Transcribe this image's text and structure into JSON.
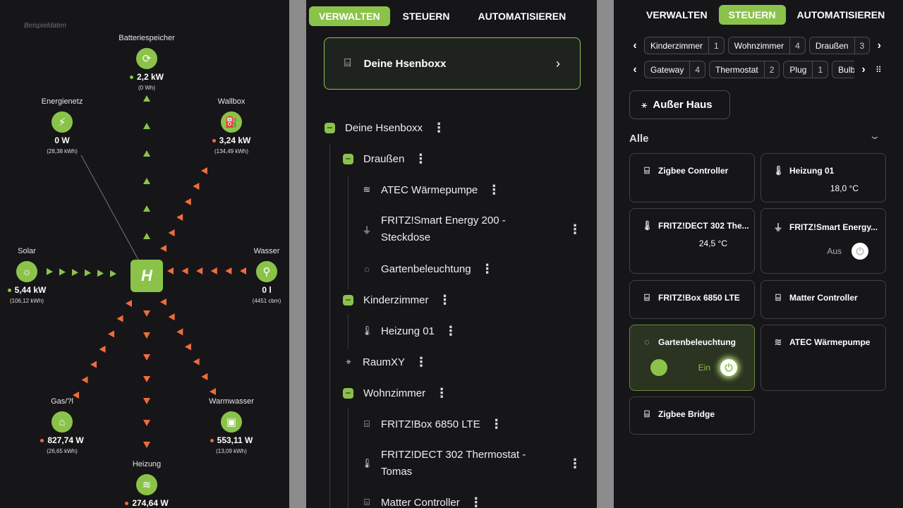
{
  "energy": {
    "demo_label": "Beispieldaten",
    "nodes": [
      {
        "id": "battery",
        "label": "Batteriespeicher",
        "icon": "battery-cycle-icon",
        "value": "2,2 kW",
        "total": "(0 Wh)",
        "dot": "#8bc34a",
        "flow": "out"
      },
      {
        "id": "grid",
        "label": "Energienetz",
        "icon": "power-grid-icon",
        "value": "0 W",
        "total": "(28,38 kWh)",
        "dot": null,
        "flow": "none"
      },
      {
        "id": "wallbox",
        "label": "Wallbox",
        "icon": "ev-charger-icon",
        "value": "3,24 kW",
        "total": "(134,49 kWh)",
        "dot": "#f26b3a",
        "flow": "in"
      },
      {
        "id": "solar",
        "label": "Solar",
        "icon": "solar-panel-icon",
        "value": "5,44 kW",
        "total": "(106,12 kWh)",
        "dot": "#8bc34a",
        "flow": "out"
      },
      {
        "id": "water",
        "label": "Wasser",
        "icon": "water-tap-icon",
        "value": "0 l",
        "total": "(4451 cbm)",
        "dot": null,
        "flow": "in"
      },
      {
        "id": "gas",
        "label": "Gas/?l",
        "icon": "house-icon",
        "value": "827,74 W",
        "total": "(26,65 kWh)",
        "dot": "#f26b3a",
        "flow": "in"
      },
      {
        "id": "hotwater",
        "label": "Warmwasser",
        "icon": "boiler-icon",
        "value": "553,11 W",
        "total": "(13,09 kWh)",
        "dot": "#f26b3a",
        "flow": "in"
      },
      {
        "id": "heating",
        "label": "Heizung",
        "icon": "heat-waves-icon",
        "value": "274,64 W",
        "total": "",
        "dot": "#f26b3a",
        "flow": "in"
      }
    ],
    "colors": {
      "produce": "#8bc34a",
      "consume": "#f26b3a"
    }
  },
  "manage": {
    "tabs": [
      {
        "label": "VERWALTEN",
        "active": true
      },
      {
        "label": "STEUERN",
        "active": false
      },
      {
        "label": "AUTOMATISIEREN",
        "active": false
      }
    ],
    "hub_card": "Deine Hsenboxx",
    "tree": [
      {
        "label": "Deine Hsenboxx",
        "level": 0,
        "type": "group"
      },
      {
        "label": "Draußen",
        "level": 1,
        "type": "group"
      },
      {
        "label": "ATEC Wärmepumpe",
        "level": 2,
        "icon": "heat-waves-icon"
      },
      {
        "label": "FRITZ!Smart Energy 200 - Steckdose",
        "level": 2,
        "icon": "plug-icon"
      },
      {
        "label": "Gartenbeleuchtung",
        "level": 2,
        "icon": "bulb-icon"
      },
      {
        "label": "Kinderzimmer",
        "level": 1,
        "type": "group"
      },
      {
        "label": "Heizung 01",
        "level": 2,
        "icon": "thermometer-icon"
      },
      {
        "label": "RaumXY",
        "level": 1,
        "icon": "location-pin-icon"
      },
      {
        "label": "Wohnzimmer",
        "level": 1,
        "type": "group"
      },
      {
        "label": "FRITZ!Box 6850 LTE",
        "level": 2,
        "icon": "router-icon"
      },
      {
        "label": "FRITZ!DECT 302 Thermostat - Tomas",
        "level": 2,
        "icon": "thermometer-icon"
      },
      {
        "label": "Matter Controller",
        "level": 2,
        "icon": "router-icon"
      }
    ]
  },
  "control": {
    "tabs": [
      {
        "label": "VERWALTEN",
        "active": false
      },
      {
        "label": "STEUERN",
        "active": true
      },
      {
        "label": "AUTOMATISIEREN",
        "active": false
      }
    ],
    "rooms": [
      {
        "name": "Kinderzimmer",
        "count": "1"
      },
      {
        "name": "Wohnzimmer",
        "count": "4"
      },
      {
        "name": "Draußen",
        "count": "3"
      }
    ],
    "types": [
      {
        "name": "Gateway",
        "count": "4"
      },
      {
        "name": "Thermostat",
        "count": "2"
      },
      {
        "name": "Plug",
        "count": "1"
      },
      {
        "name": "Bulb",
        "count": ""
      }
    ],
    "scene": "Außer Haus",
    "section": "Alle",
    "devices": [
      {
        "name": "Zigbee Controller",
        "icon": "router-icon",
        "value": ""
      },
      {
        "name": "Heizung 01",
        "icon": "thermometer-icon",
        "value": "18,0 °C"
      },
      {
        "name": "FRITZ!DECT 302 The...",
        "icon": "thermometer-icon",
        "value": "24,5 °C"
      },
      {
        "name": "FRITZ!Smart Energy...",
        "icon": "plug-icon",
        "state": "Aus"
      },
      {
        "name": "FRITZ!Box 6850 LTE",
        "icon": "router-icon",
        "value": ""
      },
      {
        "name": "Matter Controller",
        "icon": "router-icon",
        "value": ""
      },
      {
        "name": "Gartenbeleuchtung",
        "icon": "bulb-icon",
        "state": "Ein"
      },
      {
        "name": "ATEC Wärmepumpe",
        "icon": "heat-waves-icon",
        "value": ""
      },
      {
        "name": "Zigbee Bridge",
        "icon": "router-icon",
        "value": ""
      }
    ]
  }
}
